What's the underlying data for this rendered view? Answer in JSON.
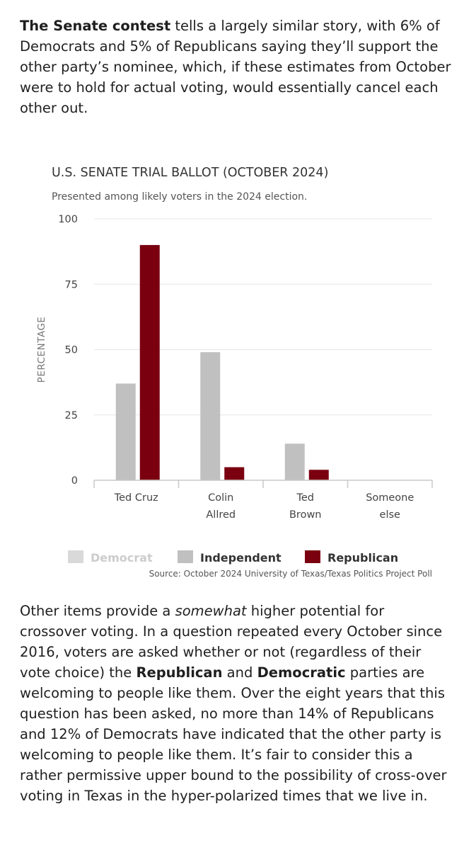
{
  "intro": {
    "bold": "The Senate contest",
    "rest": " tells a largely similar story, with 6% of Democrats and 5% of Republicans saying they’ll support the other party’s nominee, which, if these estimates from October were to hold for actual voting, would essentially cancel each other out."
  },
  "chart_data": {
    "type": "bar",
    "title": "U.S. SENATE TRIAL BALLOT (OCTOBER 2024)",
    "subtitle": "Presented among likely voters in the 2024 election.",
    "xlabel": "",
    "ylabel": "PERCENTAGE",
    "ylim": [
      0,
      100
    ],
    "yticks": [
      0,
      25,
      50,
      75,
      100
    ],
    "grid": true,
    "legend_position": "bottom",
    "categories": [
      [
        "Ted Cruz"
      ],
      [
        "Colin",
        "Allred"
      ],
      [
        "Ted",
        "Brown"
      ],
      [
        "Someone",
        "else"
      ]
    ],
    "series": [
      {
        "name": "Democrat",
        "color": "#d9d9d9",
        "values": [
          0,
          0,
          0,
          0
        ],
        "legend_dimmed": true
      },
      {
        "name": "Independent",
        "color": "#c0c0c0",
        "values": [
          37,
          49,
          14,
          0
        ],
        "legend_dimmed": false
      },
      {
        "name": "Republican",
        "color": "#7a0010",
        "values": [
          90,
          5,
          4,
          0
        ],
        "legend_dimmed": false
      }
    ],
    "source": "Source: October 2024 University of Texas/Texas Politics Project Poll"
  },
  "outro": {
    "parts": [
      {
        "t": "Other items provide a ",
        "s": "n"
      },
      {
        "t": "somewhat",
        "s": "i"
      },
      {
        "t": " higher potential for crossover voting. In a question repeated every October since 2016, voters are asked whether or not (regardless of their vote choice) the ",
        "s": "n"
      },
      {
        "t": "Republican",
        "s": "b"
      },
      {
        "t": " and ",
        "s": "n"
      },
      {
        "t": "Democratic",
        "s": "b"
      },
      {
        "t": " parties are welcoming to people like them. Over the eight years that this question has been asked, no more than 14% of Republicans and 12% of Democrats have indicated that the other party is welcoming to people like them. It’s fair to consider this a rather permissive upper bound to the possibility of cross-over voting in Texas in the hyper-polarized times that we live in.",
        "s": "n"
      }
    ]
  },
  "colors": {
    "grid": "#e6e6e6",
    "axis": "#c8c8c8",
    "legend_dimmed_text": "#cccccc",
    "legend_text": "#333333"
  }
}
